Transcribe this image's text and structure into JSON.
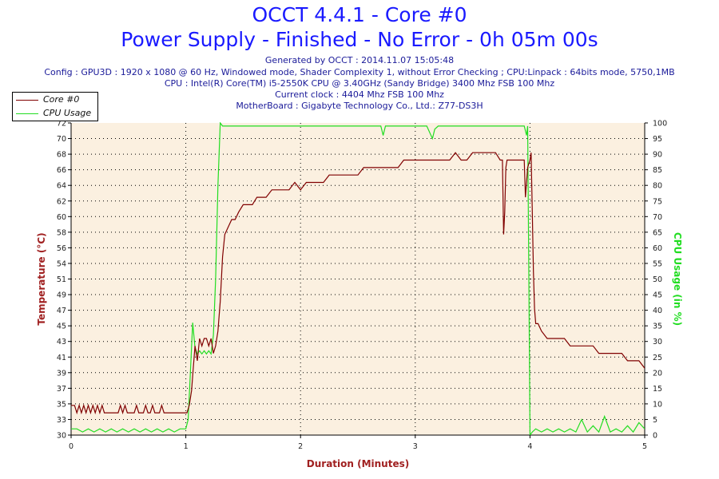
{
  "header": {
    "title_line1": "OCCT 4.4.1 - Core #0",
    "title_line2": "Power Supply - Finished - No Error - 0h 05m 00s",
    "generated": "Generated by OCCT : 2014.11.07 15:05:48",
    "config": "Config : GPU3D : 1920 x 1080 @ 60 Hz, Windowed mode, Shader Complexity 1, without Error Checking ; CPU:Linpack : 64bits mode, 5750,1MB",
    "cpu": "CPU : Intel(R) Core(TM) i5-2550K CPU @ 3.40GHz (Sandy Bridge) 3400 Mhz FSB 100 Mhz",
    "clock": "Current clock : 4404 Mhz FSB 100 Mhz",
    "motherboard": "MotherBoard : Gigabyte Technology Co., Ltd.: Z77-DS3H"
  },
  "colors": {
    "temperature": "#800000",
    "cpu_usage": "#22dd22",
    "plot_bg": "#fbf0e0",
    "title": "#1a1aff"
  },
  "chart_data": {
    "type": "line",
    "xlabel": "Duration (Minutes)",
    "ylabel_left": "Temperature (°C)",
    "ylabel_right": "CPU Usage (in %)",
    "xlim": [
      0,
      5
    ],
    "ylim_left": [
      30,
      72
    ],
    "ylim_right": [
      0,
      100
    ],
    "x_ticks": [
      0,
      1,
      2,
      3,
      4,
      5
    ],
    "y_ticks_left": [
      30,
      33,
      35,
      37,
      39,
      41,
      43,
      45,
      47,
      49,
      51,
      54,
      56,
      58,
      60,
      62,
      64,
      66,
      68,
      70,
      72
    ],
    "y_ticks_right": [
      0,
      5,
      10,
      15,
      20,
      25,
      30,
      35,
      40,
      45,
      50,
      55,
      60,
      65,
      70,
      75,
      80,
      85,
      90,
      95,
      100
    ],
    "grid": true,
    "legend_position": "top-left",
    "series": [
      {
        "name": "Core #0",
        "axis": "left",
        "x": [
          0,
          0.03,
          0.05,
          0.07,
          0.09,
          0.11,
          0.13,
          0.15,
          0.17,
          0.19,
          0.21,
          0.23,
          0.25,
          0.27,
          0.29,
          0.31,
          0.33,
          0.35,
          0.37,
          0.39,
          0.41,
          0.43,
          0.45,
          0.47,
          0.49,
          0.51,
          0.53,
          0.55,
          0.57,
          0.59,
          0.61,
          0.63,
          0.65,
          0.67,
          0.69,
          0.71,
          0.73,
          0.75,
          0.77,
          0.79,
          0.81,
          0.83,
          0.85,
          0.87,
          0.89,
          0.91,
          0.93,
          0.95,
          0.97,
          0.99,
          1.01,
          1.03,
          1.05,
          1.06,
          1.08,
          1.1,
          1.12,
          1.14,
          1.16,
          1.18,
          1.2,
          1.22,
          1.24,
          1.26,
          1.28,
          1.3,
          1.32,
          1.34,
          1.37,
          1.4,
          1.43,
          1.46,
          1.5,
          1.54,
          1.58,
          1.62,
          1.66,
          1.7,
          1.75,
          1.8,
          1.85,
          1.9,
          1.95,
          2.0,
          2.05,
          2.1,
          2.15,
          2.2,
          2.25,
          2.3,
          2.35,
          2.4,
          2.45,
          2.5,
          2.55,
          2.6,
          2.65,
          2.7,
          2.75,
          2.8,
          2.85,
          2.9,
          2.95,
          3.0,
          3.05,
          3.1,
          3.15,
          3.2,
          3.25,
          3.3,
          3.35,
          3.4,
          3.45,
          3.5,
          3.55,
          3.6,
          3.65,
          3.7,
          3.74,
          3.76,
          3.77,
          3.78,
          3.79,
          3.8,
          3.82,
          3.84,
          3.86,
          3.88,
          3.9,
          3.92,
          3.94,
          3.95,
          3.96,
          3.98,
          4.0,
          4.01,
          4.02,
          4.03,
          4.04,
          4.05,
          4.07,
          4.1,
          4.15,
          4.2,
          4.25,
          4.3,
          4.35,
          4.4,
          4.45,
          4.5,
          4.55,
          4.6,
          4.65,
          4.7,
          4.75,
          4.8,
          4.85,
          4.9,
          4.95,
          5.0
        ],
        "values": [
          34,
          34,
          33,
          34,
          33,
          34,
          33,
          34,
          33,
          34,
          33,
          34,
          33,
          34,
          33,
          33,
          33,
          33,
          33,
          33,
          33,
          34,
          33,
          34,
          33,
          33,
          33,
          33,
          34,
          33,
          33,
          33,
          34,
          33,
          33,
          34,
          33,
          33,
          33,
          34,
          33,
          33,
          33,
          33,
          33,
          33,
          33,
          33,
          33,
          33,
          33,
          34,
          36,
          38,
          42,
          40,
          43,
          42,
          43,
          43,
          42,
          43,
          41,
          42,
          44,
          48,
          54,
          57,
          58,
          59,
          59,
          60,
          61,
          61,
          61,
          62,
          62,
          62,
          63,
          63,
          63,
          63,
          64,
          63,
          64,
          64,
          64,
          64,
          65,
          65,
          65,
          65,
          65,
          65,
          66,
          66,
          66,
          66,
          66,
          66,
          66,
          67,
          67,
          67,
          67,
          67,
          67,
          67,
          67,
          67,
          68,
          67,
          67,
          68,
          68,
          68,
          68,
          68,
          67,
          67,
          57,
          60,
          66,
          67,
          67,
          67,
          67,
          67,
          67,
          67,
          67,
          67,
          62,
          66,
          67,
          68,
          60,
          52,
          47,
          45,
          45,
          44,
          43,
          43,
          43,
          43,
          42,
          42,
          42,
          42,
          42,
          41,
          41,
          41,
          41,
          41,
          40,
          40,
          40,
          39
        ]
      },
      {
        "name": "CPU Usage",
        "axis": "right",
        "x": [
          0,
          0.05,
          0.1,
          0.15,
          0.2,
          0.25,
          0.3,
          0.35,
          0.4,
          0.45,
          0.5,
          0.55,
          0.6,
          0.65,
          0.7,
          0.75,
          0.8,
          0.85,
          0.9,
          0.95,
          1.0,
          1.02,
          1.04,
          1.06,
          1.08,
          1.1,
          1.12,
          1.14,
          1.16,
          1.18,
          1.2,
          1.22,
          1.24,
          1.26,
          1.28,
          1.3,
          1.32,
          1.35,
          1.4,
          1.5,
          1.6,
          1.7,
          1.8,
          1.9,
          2.0,
          2.1,
          2.2,
          2.3,
          2.4,
          2.5,
          2.6,
          2.7,
          2.72,
          2.74,
          2.8,
          2.9,
          3.0,
          3.1,
          3.15,
          3.17,
          3.2,
          3.3,
          3.4,
          3.5,
          3.6,
          3.7,
          3.8,
          3.9,
          3.95,
          3.97,
          3.98,
          3.99,
          4.0,
          4.02,
          4.05,
          4.1,
          4.15,
          4.2,
          4.25,
          4.3,
          4.35,
          4.4,
          4.45,
          4.5,
          4.55,
          4.6,
          4.65,
          4.7,
          4.75,
          4.8,
          4.85,
          4.9,
          4.95,
          5.0
        ],
        "values": [
          2,
          2,
          1,
          2,
          1,
          2,
          1,
          2,
          1,
          2,
          1,
          2,
          1,
          2,
          1,
          2,
          1,
          2,
          1,
          2,
          2,
          5,
          20,
          36,
          28,
          26,
          27,
          26,
          27,
          26,
          27,
          26,
          32,
          50,
          80,
          100,
          99,
          99,
          99,
          99,
          99,
          99,
          99,
          99,
          99,
          99,
          99,
          99,
          99,
          99,
          99,
          99,
          96,
          99,
          99,
          99,
          99,
          99,
          95,
          98,
          99,
          99,
          99,
          99,
          99,
          99,
          99,
          99,
          99,
          96,
          99,
          50,
          0,
          1,
          2,
          1,
          2,
          1,
          2,
          1,
          2,
          1,
          5,
          1,
          3,
          1,
          6,
          1,
          2,
          1,
          3,
          1,
          4,
          2
        ]
      }
    ]
  }
}
